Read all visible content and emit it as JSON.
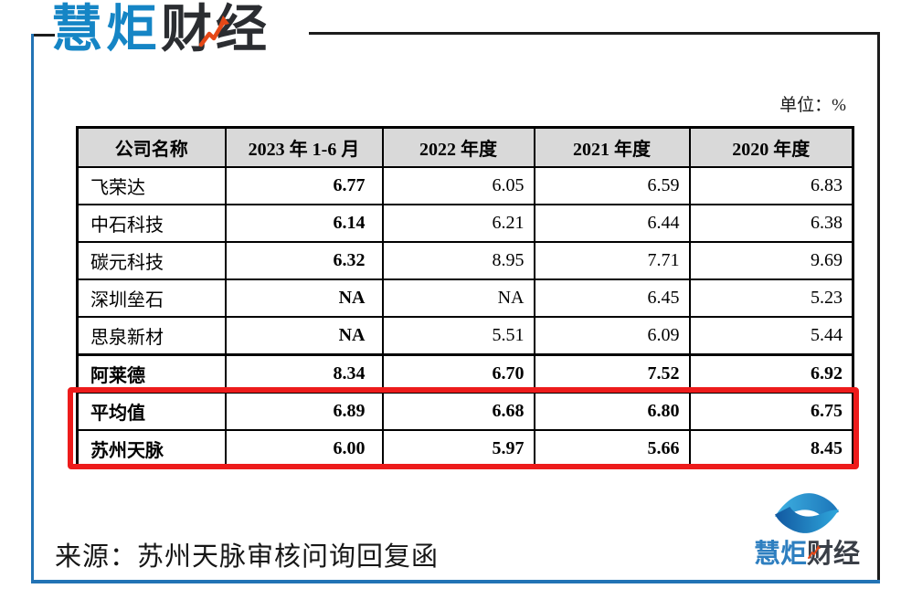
{
  "brand": {
    "name_blue": "慧炬",
    "name_dark": "财经"
  },
  "unit_label": "单位：%",
  "table": {
    "headers": [
      "公司名称",
      "2023 年 1-6 月",
      "2022 年度",
      "2021 年度",
      "2020 年度"
    ],
    "rows": [
      {
        "name": "飞荣达",
        "values": [
          "6.77",
          "6.05",
          "6.59",
          "6.83"
        ],
        "emphasis": false,
        "thick_top": false
      },
      {
        "name": "中石科技",
        "values": [
          "6.14",
          "6.21",
          "6.44",
          "6.38"
        ],
        "emphasis": false,
        "thick_top": false
      },
      {
        "name": "碳元科技",
        "values": [
          "6.32",
          "8.95",
          "7.71",
          "9.69"
        ],
        "emphasis": false,
        "thick_top": false
      },
      {
        "name": "深圳垒石",
        "values": [
          "NA",
          "NA",
          "6.45",
          "5.23"
        ],
        "emphasis": false,
        "thick_top": false
      },
      {
        "name": "思泉新材",
        "values": [
          "NA",
          "5.51",
          "6.09",
          "5.44"
        ],
        "emphasis": false,
        "thick_top": false
      },
      {
        "name": "阿莱德",
        "values": [
          "8.34",
          "6.70",
          "7.52",
          "6.92"
        ],
        "emphasis": true,
        "thick_top": true
      },
      {
        "name": "平均值",
        "values": [
          "6.89",
          "6.68",
          "6.80",
          "6.75"
        ],
        "emphasis": true,
        "thick_top": false,
        "highlighted": true
      },
      {
        "name": "苏州天脉",
        "values": [
          "6.00",
          "5.97",
          "5.66",
          "8.45"
        ],
        "emphasis": true,
        "thick_top": false,
        "highlighted": true
      }
    ]
  },
  "source_note": "来源：苏州天脉审核问询回复函",
  "footer_logo": {
    "name_blue": "慧炬",
    "name_dark": "财经"
  },
  "colors": {
    "brand_blue": "#1585c5",
    "brand_dark": "#2b2d31",
    "frame_blue": "#2273b5",
    "frame_black": "#1c1c1c",
    "highlight_red": "#ed1b1b",
    "header_bg": "#d9d9d9",
    "arrow_red": "#e64817",
    "icon_blue_light": "#3fb2e3",
    "icon_blue_dark": "#1258a0"
  },
  "chart_data": {
    "type": "table",
    "title": "",
    "unit": "%",
    "columns": [
      "公司名称",
      "2023 年 1-6 月",
      "2022 年度",
      "2021 年度",
      "2020 年度"
    ],
    "rows": [
      [
        "飞荣达",
        6.77,
        6.05,
        6.59,
        6.83
      ],
      [
        "中石科技",
        6.14,
        6.21,
        6.44,
        6.38
      ],
      [
        "碳元科技",
        6.32,
        8.95,
        7.71,
        9.69
      ],
      [
        "深圳垒石",
        null,
        null,
        6.45,
        5.23
      ],
      [
        "思泉新材",
        null,
        5.51,
        6.09,
        5.44
      ],
      [
        "阿莱德",
        8.34,
        6.7,
        7.52,
        6.92
      ],
      [
        "平均值",
        6.89,
        6.68,
        6.8,
        6.75
      ],
      [
        "苏州天脉",
        6.0,
        5.97,
        5.66,
        8.45
      ]
    ],
    "na_text": "NA",
    "highlighted_rows": [
      "平均值",
      "苏州天脉"
    ],
    "source": "来源：苏州天脉审核问询回复函"
  }
}
